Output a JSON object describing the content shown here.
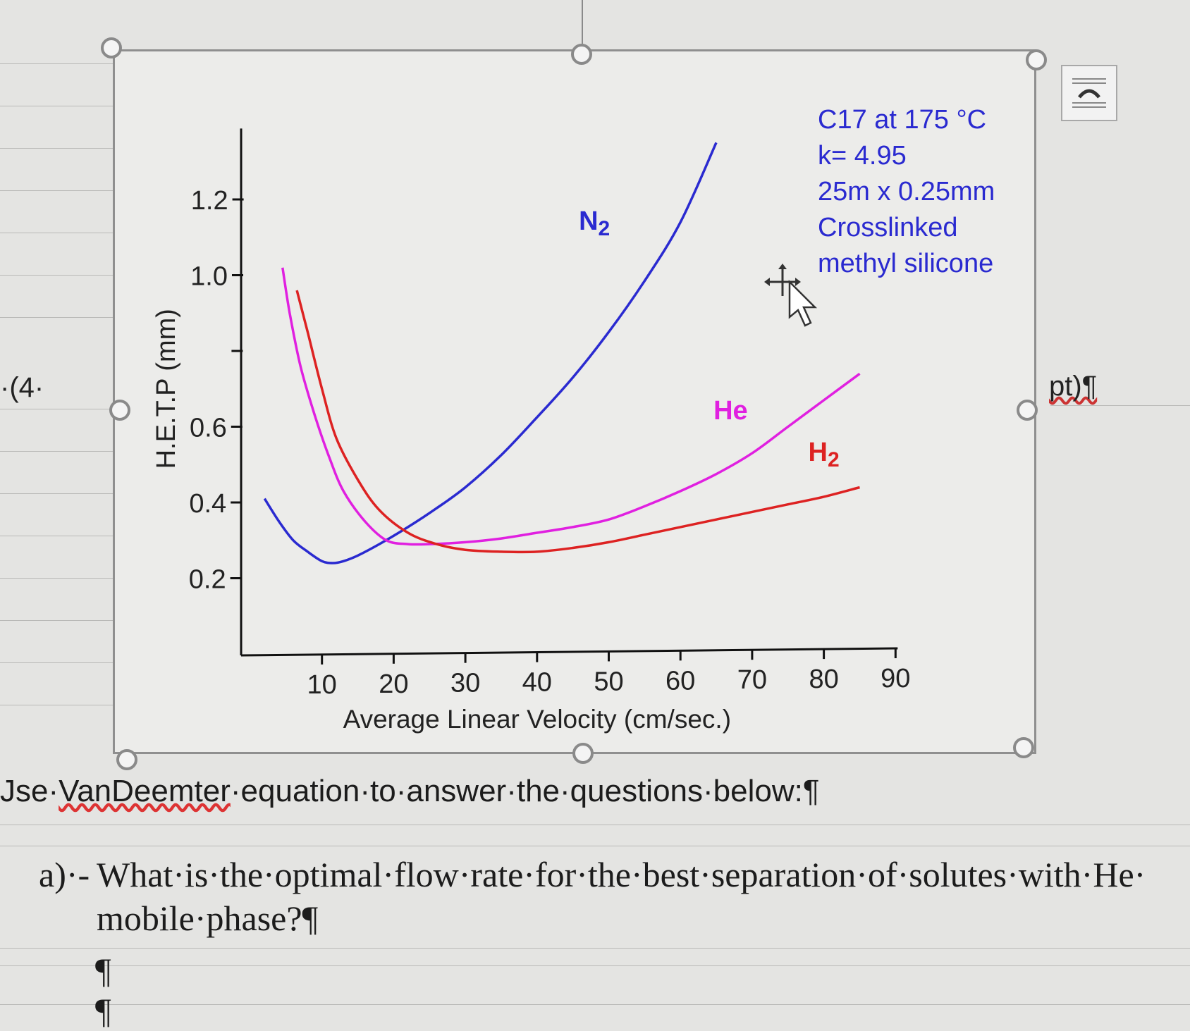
{
  "document": {
    "left_prefix": "·(4·",
    "right_suffix": "pt)¶",
    "instruction_prefix": "Jse·",
    "instruction_vandeemter": "VanDeemter",
    "instruction_rest": "·equation·to·answer·the·questions·below:¶",
    "question_a_marker": "a)·-",
    "question_a_text": "What·is·the·optimal·flow·rate·for·the·best·separation·of·solutes·with·He· mobile·phase?¶",
    "pilcrow_1": "¶",
    "pilcrow_2": "¶"
  },
  "colors": {
    "N2": "#2a2ad0",
    "He": "#e020e0",
    "H2": "#dd2222",
    "annotation": "#2a2ad0"
  },
  "chart_data": {
    "type": "line",
    "title": "",
    "xlabel": "Average Linear Velocity (cm/sec.)",
    "ylabel": "H.E.T.P (mm)",
    "xlim": [
      0,
      90
    ],
    "ylim": [
      0,
      1.35
    ],
    "x_ticks": [
      10,
      20,
      30,
      40,
      50,
      60,
      70,
      80,
      90
    ],
    "y_ticks": [
      {
        "value": 0.2,
        "label": "0.2"
      },
      {
        "value": 0.4,
        "label": "0.4"
      },
      {
        "value": 0.6,
        "label": "0.6"
      },
      {
        "value": 0.8,
        "label": ""
      },
      {
        "value": 1.0,
        "label": "1.0"
      },
      {
        "value": 1.2,
        "label": "1.2"
      }
    ],
    "annotation_lines": [
      "C17 at 175 °C",
      "k= 4.95",
      "25m x 0.25mm",
      "Crosslinked",
      "methyl silicone"
    ],
    "series": [
      {
        "name": "N2",
        "label_main": "N",
        "label_sub": "2",
        "x": [
          2,
          4,
          6,
          8,
          10,
          11.5,
          13,
          15,
          18,
          22,
          26,
          30,
          35,
          40,
          45,
          50,
          55,
          60,
          65
        ],
        "y": [
          0.41,
          0.35,
          0.3,
          0.27,
          0.245,
          0.24,
          0.245,
          0.26,
          0.29,
          0.335,
          0.385,
          0.44,
          0.525,
          0.625,
          0.73,
          0.85,
          0.985,
          1.14,
          1.35
        ]
      },
      {
        "name": "He",
        "label_main": "He",
        "label_sub": "",
        "x": [
          4.5,
          5.5,
          7,
          9,
          11,
          13,
          16,
          19,
          22,
          25,
          30,
          35,
          40,
          45,
          50,
          55,
          60,
          65,
          70,
          75,
          80,
          85
        ],
        "y": [
          1.02,
          0.9,
          0.76,
          0.63,
          0.52,
          0.43,
          0.35,
          0.3,
          0.29,
          0.29,
          0.295,
          0.305,
          0.32,
          0.335,
          0.355,
          0.39,
          0.43,
          0.475,
          0.53,
          0.6,
          0.67,
          0.74
        ]
      },
      {
        "name": "H2",
        "label_main": "H",
        "label_sub": "2",
        "x": [
          6.5,
          8,
          10,
          12,
          15,
          18,
          22,
          26,
          30,
          35,
          40,
          45,
          50,
          55,
          60,
          65,
          70,
          75,
          80,
          85
        ],
        "y": [
          0.96,
          0.85,
          0.7,
          0.57,
          0.46,
          0.38,
          0.32,
          0.29,
          0.275,
          0.27,
          0.27,
          0.28,
          0.295,
          0.315,
          0.335,
          0.355,
          0.375,
          0.395,
          0.415,
          0.44
        ]
      }
    ]
  }
}
